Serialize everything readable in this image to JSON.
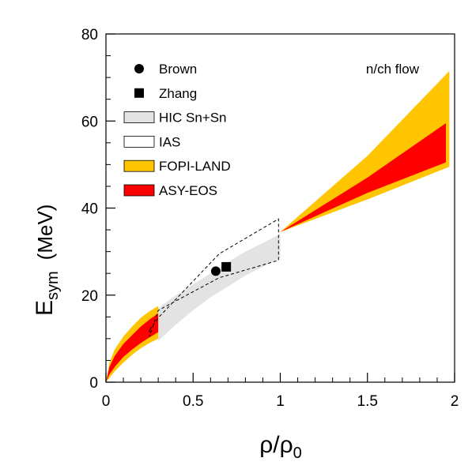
{
  "chart_data": {
    "type": "area",
    "title": "",
    "annotation": "n/ch flow",
    "xlabel": {
      "base": "ρ/ρ",
      "sub": "0"
    },
    "ylabel": {
      "base": "E",
      "sub": "sym",
      "unit": "(MeV)"
    },
    "xlim": [
      0,
      2
    ],
    "ylim": [
      0,
      80
    ],
    "xticks": [
      0,
      0.5,
      1,
      1.5,
      2
    ],
    "xtick_labels": [
      "0",
      "0.5",
      "1",
      "1.5",
      "2"
    ],
    "yticks": [
      0,
      20,
      40,
      60,
      80
    ],
    "ytick_labels": [
      "0",
      "20",
      "40",
      "60",
      "80"
    ],
    "legend_position": "top-left",
    "legend": [
      {
        "label": "Brown",
        "marker": "circle"
      },
      {
        "label": "Zhang",
        "marker": "square"
      },
      {
        "label": "HIC Sn+Sn",
        "marker": "box",
        "color": "#e3e3e3"
      },
      {
        "label": "IAS",
        "marker": "box",
        "color": "#ffffff"
      },
      {
        "label": "FOPI-LAND",
        "marker": "box",
        "color": "#ffc500"
      },
      {
        "label": "ASY-EOS",
        "marker": "box",
        "color": "#ff0000"
      }
    ],
    "series": [
      {
        "name": "HIC Sn+Sn",
        "color": "#e3e3e3",
        "x": [
          0.3,
          0.4,
          0.5,
          0.6,
          0.7,
          0.8,
          0.9,
          1.0
        ],
        "upper": [
          17.0,
          19.9,
          22.5,
          25.0,
          27.6,
          30.0,
          32.0,
          34.0
        ],
        "lower": [
          9.5,
          13.2,
          16.5,
          19.5,
          22.0,
          24.5,
          26.5,
          28.5
        ]
      },
      {
        "name": "IAS",
        "color": "#ffffff",
        "points": [
          [
            0.25,
            12.0
          ],
          [
            0.3,
            14.8
          ],
          [
            0.65,
            29.5
          ],
          [
            0.99,
            37.5
          ],
          [
            0.99,
            28.0
          ],
          [
            0.65,
            24.0
          ],
          [
            0.3,
            16.5
          ],
          [
            0.25,
            10.5
          ]
        ]
      },
      {
        "name": "FOPI-LAND",
        "color": "#ffc500",
        "x": [
          0,
          0.02,
          0.05,
          0.1,
          0.15,
          0.2,
          0.25,
          0.3
        ],
        "upper": [
          0,
          4.5,
          7.5,
          10.5,
          12.8,
          14.8,
          16.3,
          17.5
        ],
        "lower": [
          0,
          1.0,
          2.5,
          4.5,
          6.3,
          7.8,
          9.0,
          10.0
        ],
        "x2": [
          1.0,
          1.5,
          1.97
        ],
        "upper2": [
          34.5,
          52.0,
          71.5
        ],
        "lower2": [
          34.5,
          42.0,
          49.5
        ]
      },
      {
        "name": "ASY-EOS",
        "color": "#ff0000",
        "x": [
          0,
          0.02,
          0.05,
          0.1,
          0.15,
          0.2,
          0.25,
          0.3
        ],
        "upper": [
          0,
          3.5,
          6.0,
          8.8,
          10.8,
          12.8,
          14.4,
          15.8
        ],
        "lower": [
          0,
          1.8,
          3.5,
          5.8,
          7.5,
          9.0,
          10.3,
          11.5
        ],
        "x2": [
          1.0,
          1.5,
          1.95
        ],
        "upper2": [
          34.5,
          47.0,
          59.5
        ],
        "lower2": [
          34.5,
          43.5,
          50.5
        ]
      }
    ],
    "points": [
      {
        "name": "Brown",
        "marker": "circle",
        "x": 0.63,
        "y": 25.5
      },
      {
        "name": "Zhang",
        "marker": "square",
        "x": 0.69,
        "y": 26.5
      }
    ]
  }
}
